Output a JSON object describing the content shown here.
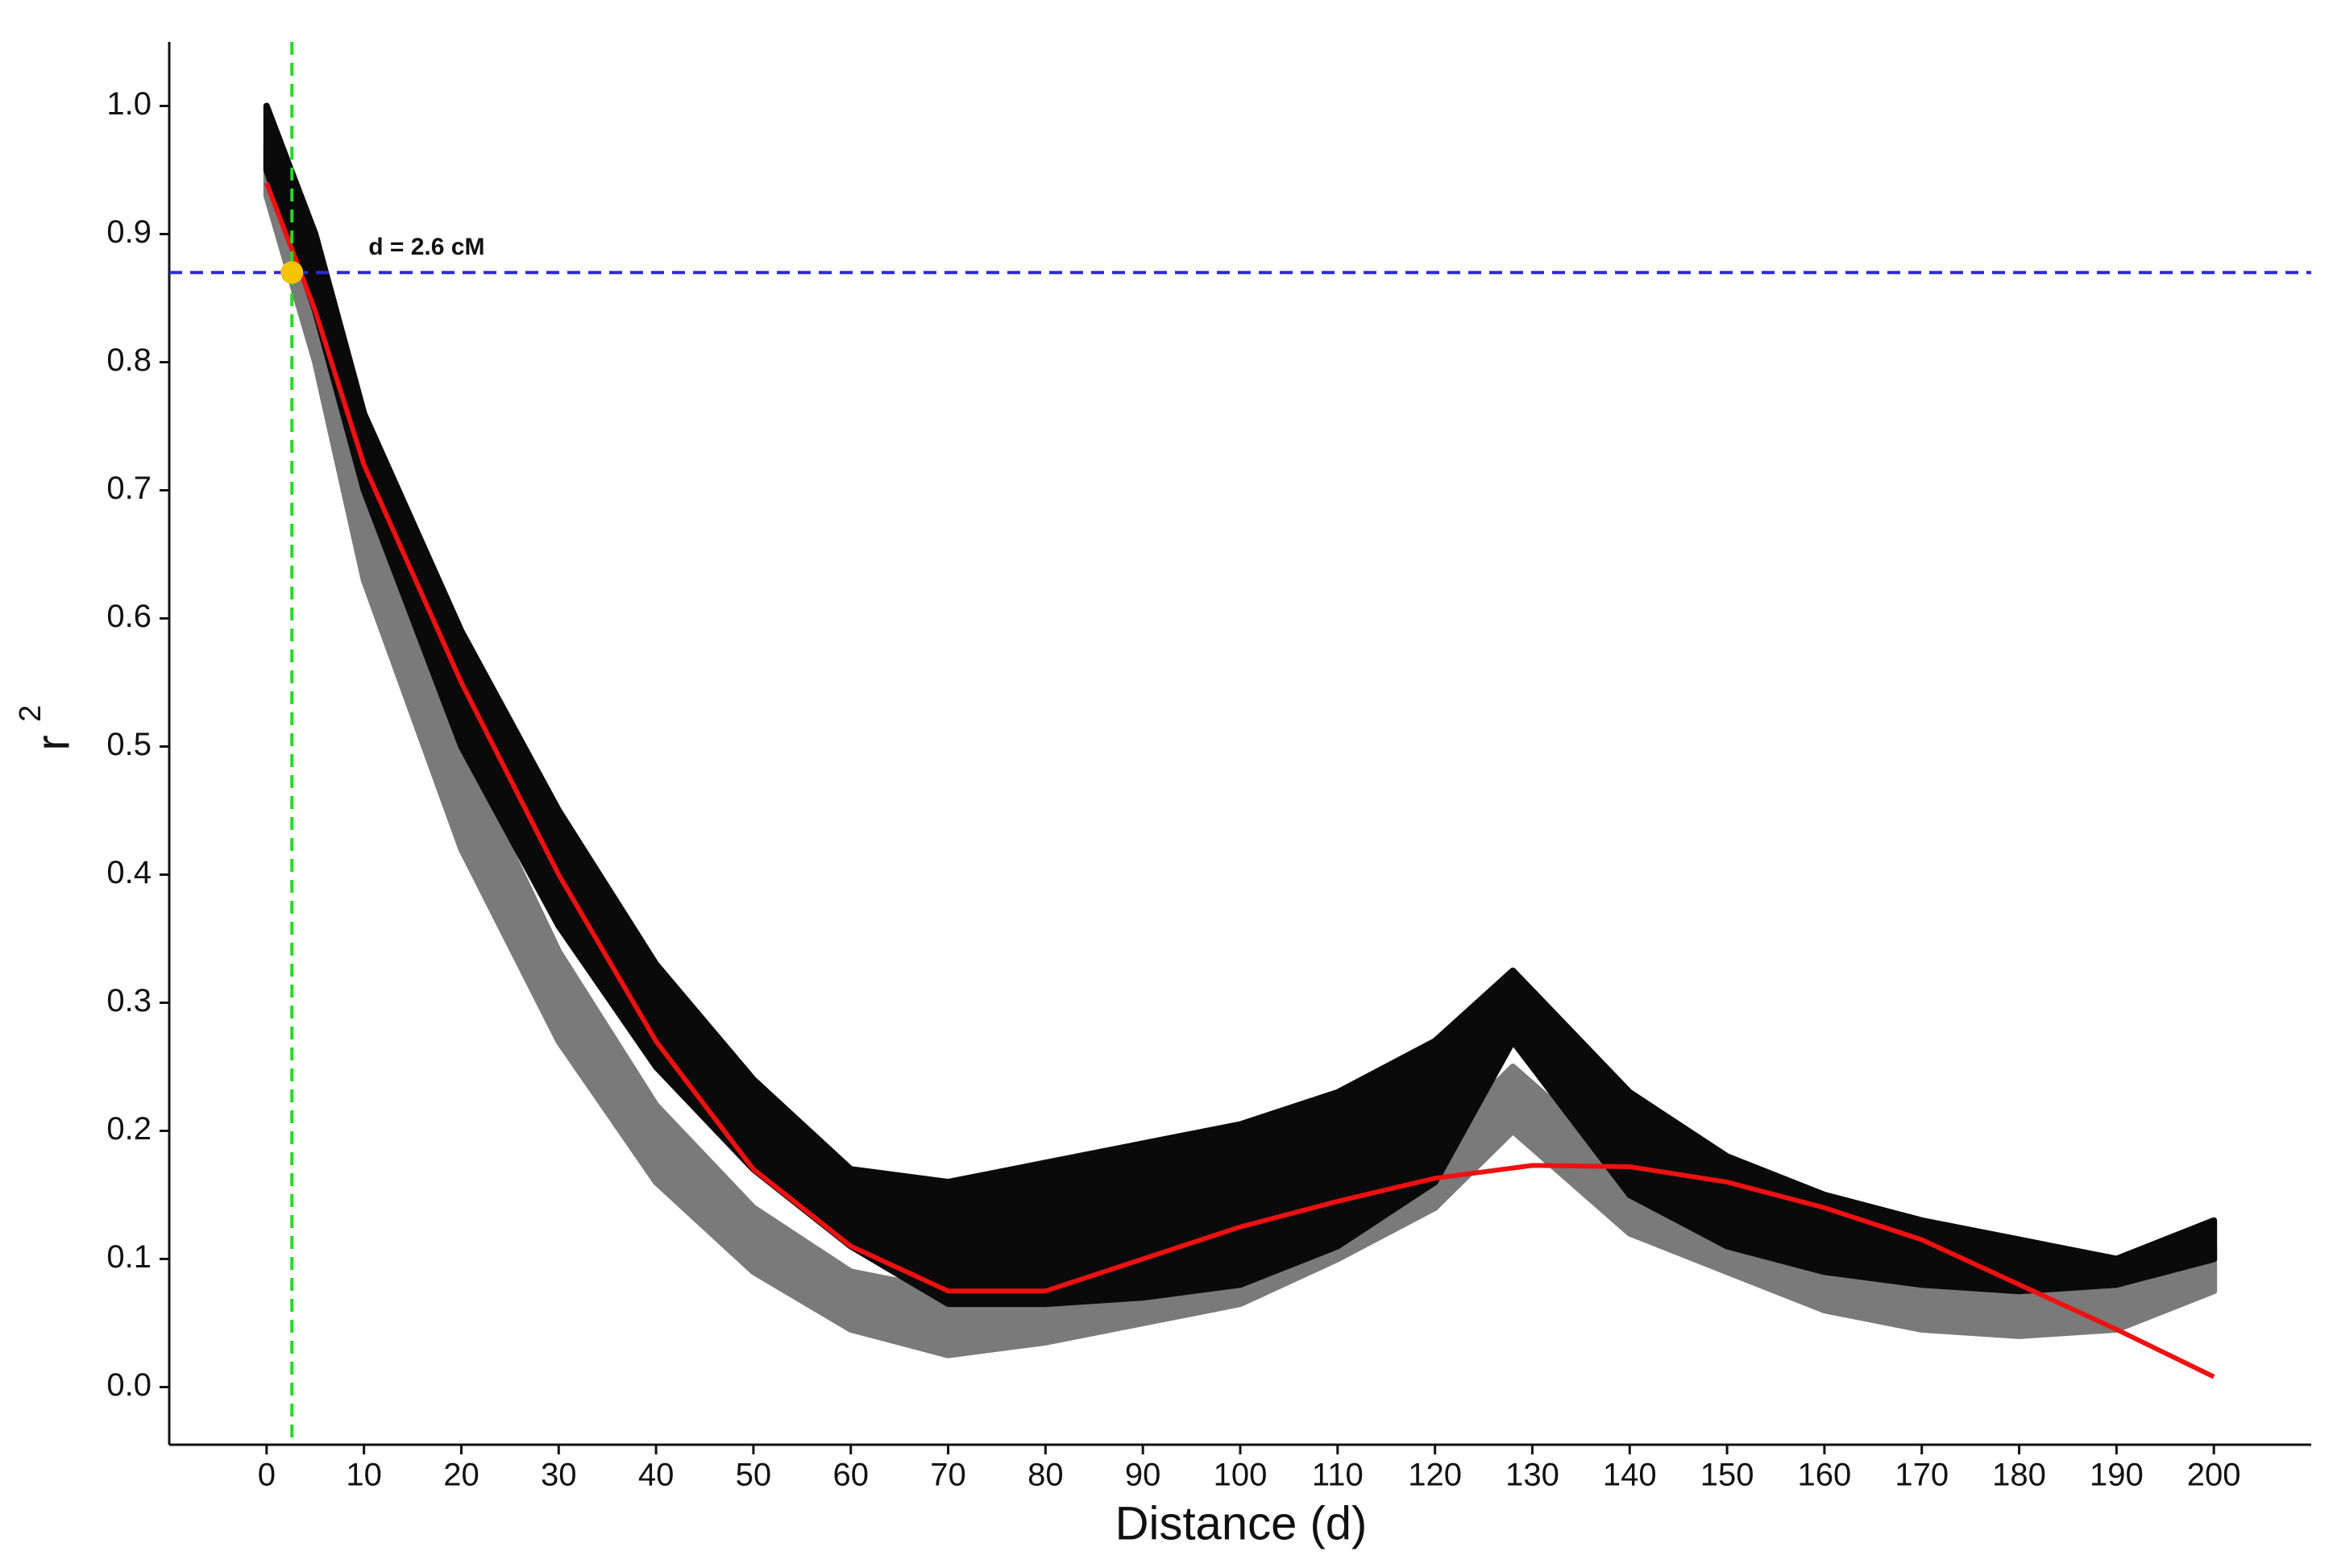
{
  "chart_data": {
    "type": "scatter",
    "xlabel": "Distance (d)",
    "ylabel": "r",
    "ylabel_superscript": "2",
    "xlim": [
      -10,
      210
    ],
    "ylim": [
      -0.045,
      1.05
    ],
    "xticks": [
      0,
      10,
      20,
      30,
      40,
      50,
      60,
      70,
      80,
      90,
      100,
      110,
      120,
      130,
      140,
      150,
      160,
      170,
      180,
      190,
      200
    ],
    "yticks": [
      {
        "value": 0,
        "label": "0.0"
      },
      0.1,
      0.2,
      0.3,
      0.4,
      0.5,
      0.6,
      0.7,
      0.8,
      0.9,
      {
        "value": 1,
        "label": "1.0"
      }
    ],
    "grid": false,
    "bands": [
      {
        "color": "#7a7a7a",
        "x": [
          0,
          5,
          10,
          20,
          30,
          40,
          50,
          60,
          70,
          80,
          90,
          100,
          110,
          120,
          128,
          140,
          150,
          160,
          170,
          180,
          190,
          200
        ],
        "upper": [
          0.97,
          0.86,
          0.7,
          0.5,
          0.34,
          0.22,
          0.14,
          0.09,
          0.075,
          0.08,
          0.09,
          0.11,
          0.15,
          0.19,
          0.25,
          0.17,
          0.15,
          0.14,
          0.12,
          0.1,
          0.1,
          0.11
        ],
        "lower": [
          0.93,
          0.8,
          0.63,
          0.42,
          0.27,
          0.16,
          0.09,
          0.045,
          0.025,
          0.035,
          0.05,
          0.065,
          0.1,
          0.14,
          0.2,
          0.12,
          0.09,
          0.06,
          0.045,
          0.04,
          0.045,
          0.075
        ]
      },
      {
        "color": "#0a0a0a",
        "x": [
          0,
          5,
          10,
          20,
          30,
          40,
          50,
          60,
          70,
          80,
          90,
          100,
          110,
          120,
          128,
          140,
          150,
          160,
          170,
          180,
          190,
          200
        ],
        "upper": [
          1.0,
          0.9,
          0.76,
          0.59,
          0.45,
          0.33,
          0.24,
          0.17,
          0.16,
          0.175,
          0.19,
          0.205,
          0.23,
          0.27,
          0.325,
          0.23,
          0.18,
          0.15,
          0.13,
          0.115,
          0.1,
          0.13
        ],
        "lower": [
          0.95,
          0.84,
          0.7,
          0.5,
          0.36,
          0.25,
          0.17,
          0.11,
          0.065,
          0.065,
          0.07,
          0.08,
          0.11,
          0.16,
          0.27,
          0.15,
          0.11,
          0.09,
          0.08,
          0.075,
          0.08,
          0.1
        ]
      }
    ],
    "fit": {
      "color": "#ee1111",
      "x": [
        0,
        5,
        10,
        20,
        30,
        40,
        50,
        60,
        70,
        80,
        90,
        100,
        110,
        120,
        130,
        140,
        150,
        160,
        170,
        180,
        190,
        200
      ],
      "values": [
        0.94,
        0.84,
        0.72,
        0.55,
        0.4,
        0.27,
        0.17,
        0.11,
        0.075,
        0.075,
        0.1,
        0.125,
        0.145,
        0.163,
        0.173,
        0.172,
        0.16,
        0.14,
        0.115,
        0.08,
        0.045,
        0.008
      ]
    },
    "hline": {
      "value": 0.87,
      "color": "#2b2bd9"
    },
    "vline": {
      "value": 2.6,
      "color": "#22dd22"
    },
    "point": {
      "x": 2.6,
      "y": 0.87,
      "color": "#f5c400"
    },
    "annotation": "d = 2.6 cM"
  }
}
